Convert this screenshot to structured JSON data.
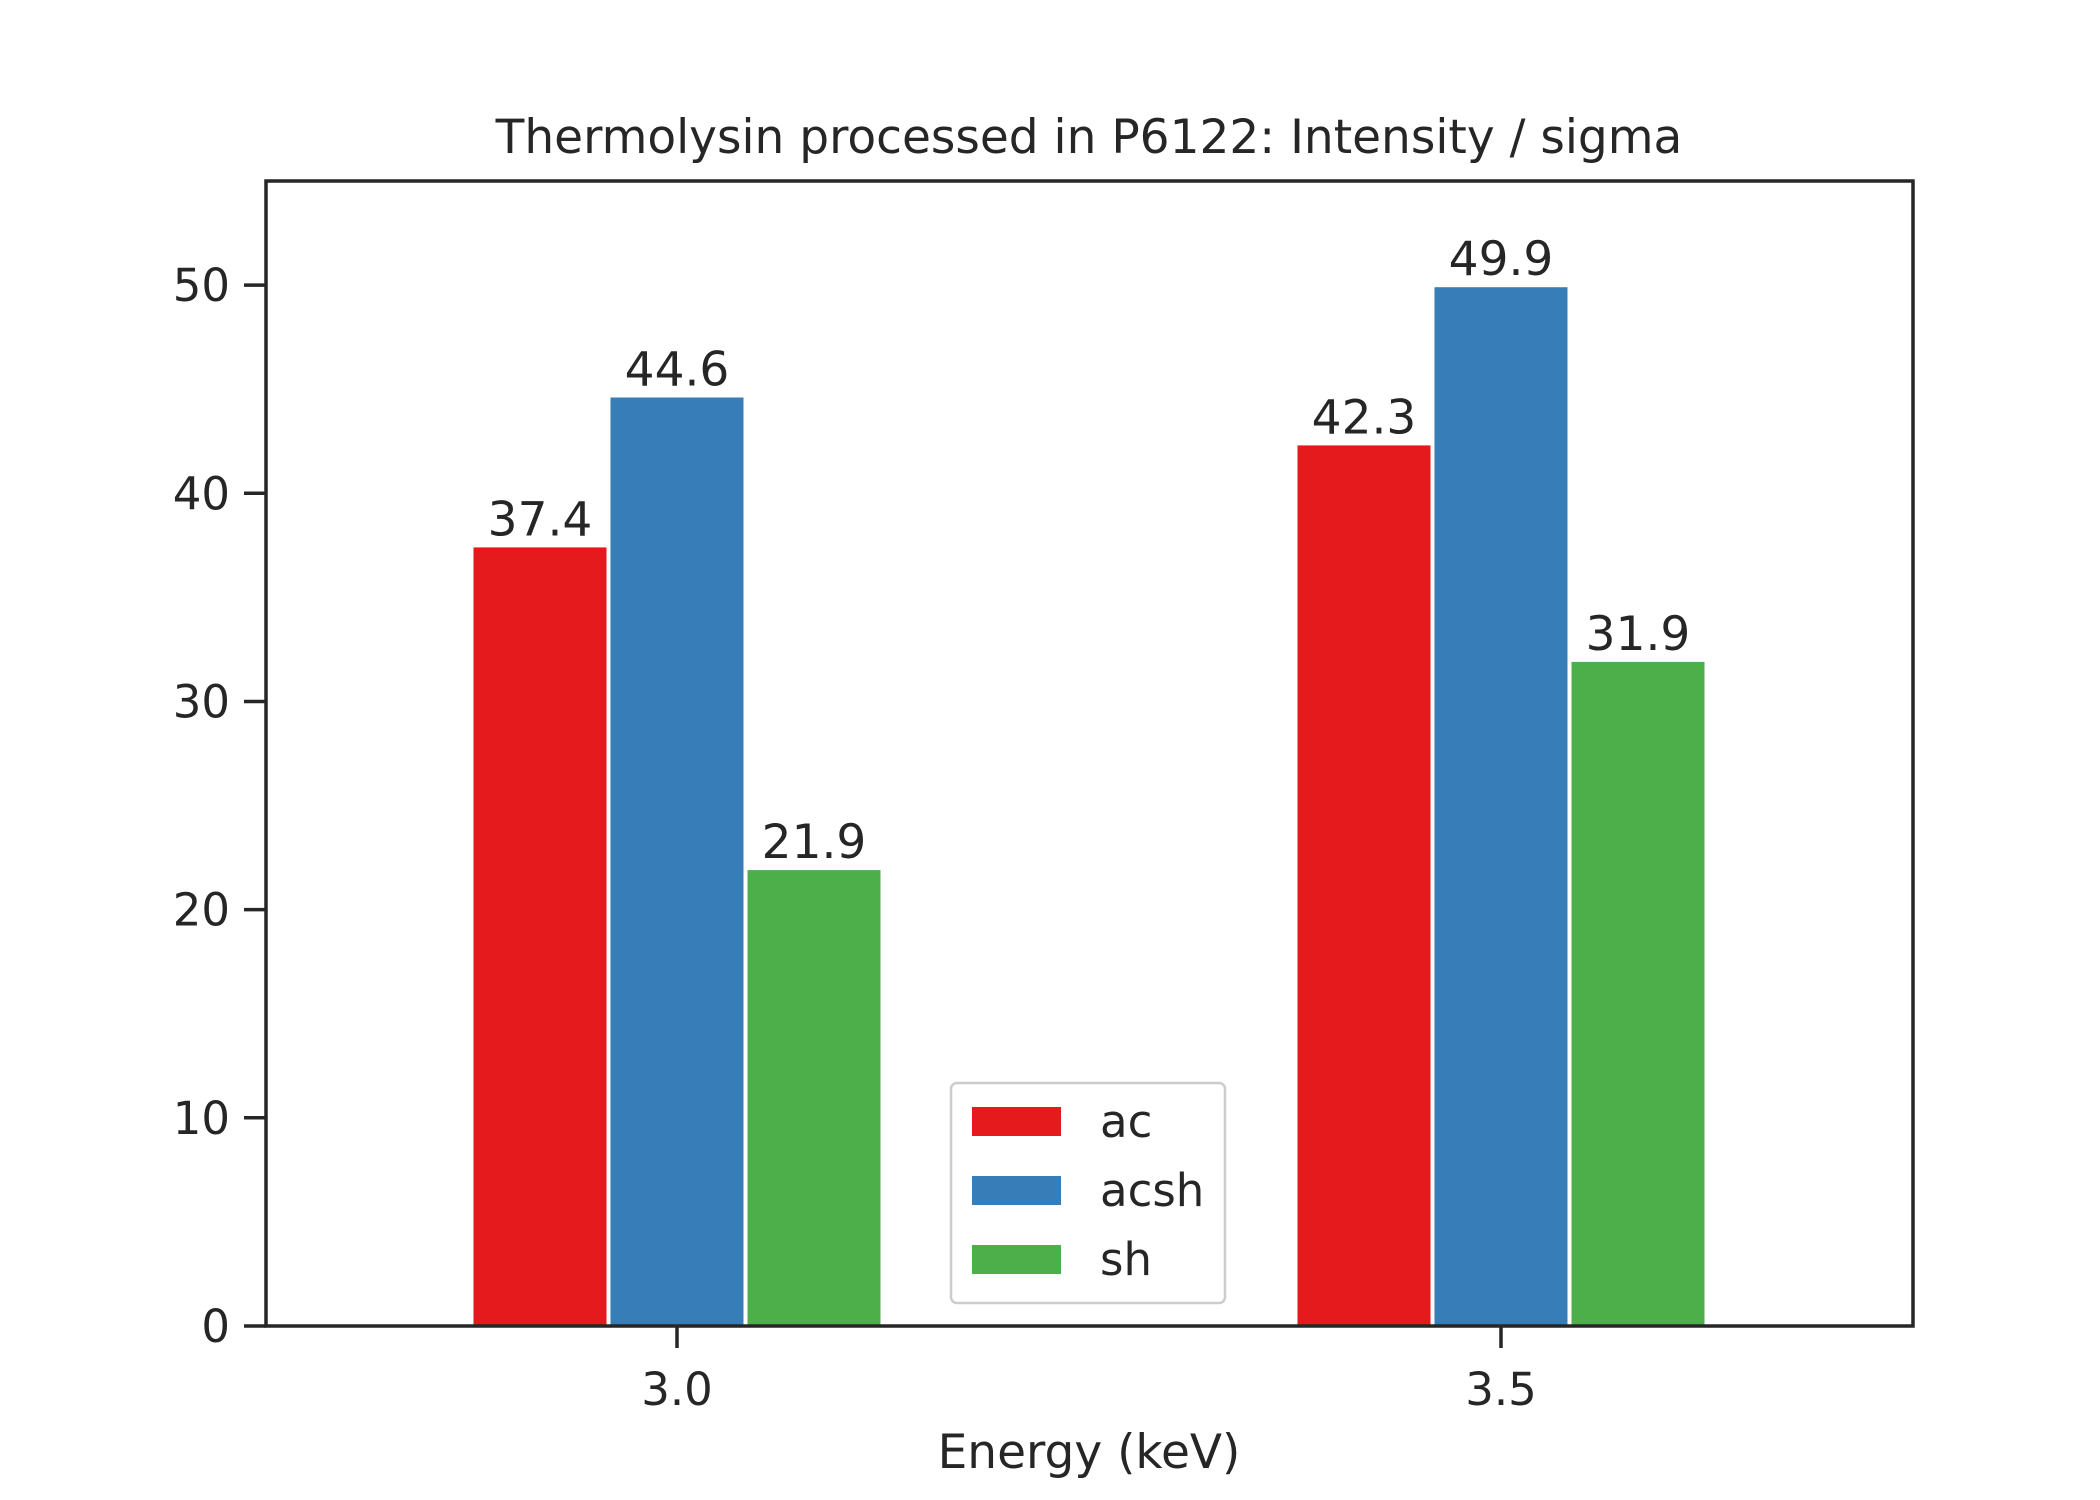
{
  "chart_data": {
    "type": "bar",
    "title": "Thermolysin processed in P6122: Intensity / sigma",
    "xlabel": "Energy (keV)",
    "ylabel": "",
    "categories": [
      "3.0",
      "3.5"
    ],
    "series": [
      {
        "name": "ac",
        "color": "#e41a1c",
        "values": [
          37.4,
          42.3
        ],
        "labels": [
          "37.4",
          "42.3"
        ]
      },
      {
        "name": "acsh",
        "color": "#377eb8",
        "values": [
          44.6,
          49.9
        ],
        "labels": [
          "44.6",
          "49.9"
        ]
      },
      {
        "name": "sh",
        "color": "#4daf4a",
        "values": [
          21.9,
          31.9
        ],
        "labels": [
          "21.9",
          "31.9"
        ]
      }
    ],
    "ylim": [
      0,
      55
    ],
    "yticks": [
      0,
      10,
      20,
      30,
      40,
      50
    ],
    "grid": false,
    "legend_position": "lower-center"
  }
}
